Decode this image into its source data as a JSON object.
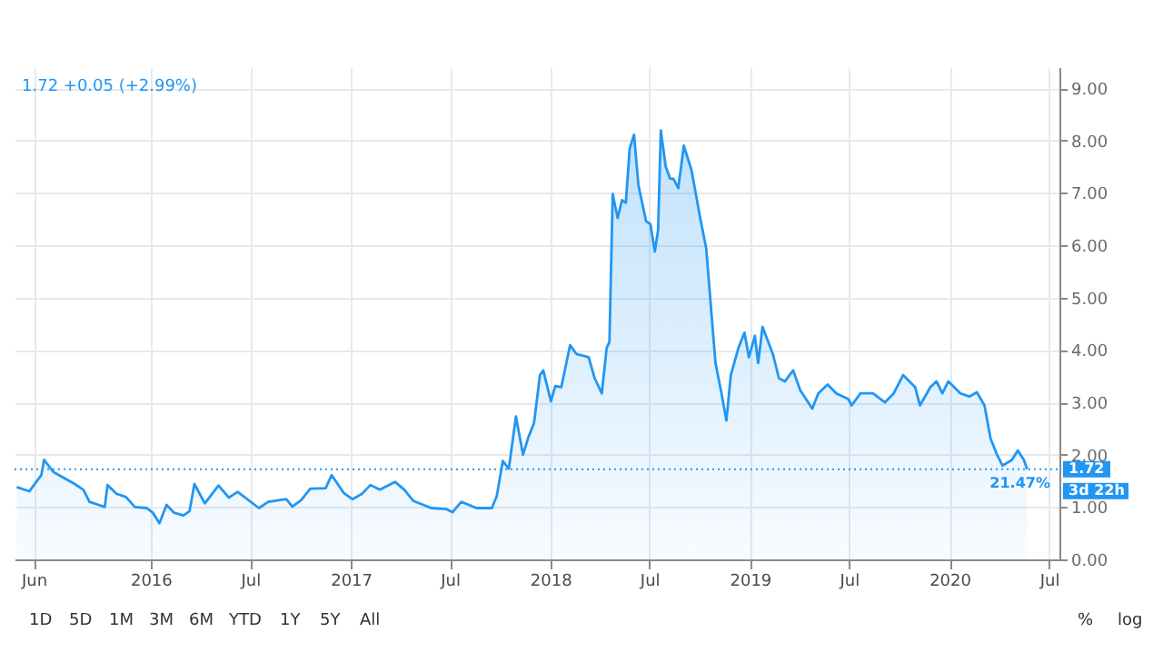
{
  "chart_data": {
    "type": "area",
    "annotations": [
      "1.72 +0.05 (+2.99%)",
      {
        "text": "21.47%",
        "y": 1.72
      },
      {
        "text": "1.72",
        "y": 1.72
      },
      "3d 22h",
      "1D",
      "5D",
      "1M",
      "3M",
      "6M",
      "YTD",
      "1Y",
      "5Y",
      "All",
      "%",
      "log"
    ],
    "x": [
      "2015-05-01",
      "2015-05-24",
      "2015-06-15",
      "2015-06-20",
      "2015-07-07",
      "2015-08-15",
      "2015-08-31",
      "2015-09-11",
      "2015-09-28",
      "2015-10-09",
      "2015-10-14",
      "2015-10-31",
      "2015-11-17",
      "2015-12-03",
      "2015-12-25",
      "2016-01-05",
      "2016-01-17",
      "2016-01-30",
      "2016-02-13",
      "2016-03-01",
      "2016-03-12",
      "2016-03-21",
      "2016-04-09",
      "2016-05-04",
      "2016-05-23",
      "2016-06-08",
      "2016-07-17",
      "2016-08-03",
      "2016-09-05",
      "2016-09-16",
      "2016-10-02",
      "2016-10-19",
      "2016-11-16",
      "2016-11-27",
      "2016-12-19",
      "2017-01-04",
      "2017-01-21",
      "2017-02-06",
      "2017-02-23",
      "2017-03-23",
      "2017-04-09",
      "2017-04-25",
      "2017-05-28",
      "2017-06-25",
      "2017-07-06",
      "2017-07-22",
      "2017-08-19",
      "2017-09-16",
      "2017-09-25",
      "2017-10-06",
      "2017-10-17",
      "2017-10-30",
      "2017-11-12",
      "2017-11-21",
      "2017-12-02",
      "2017-12-13",
      "2017-12-19",
      "2018-01-02",
      "2018-01-10",
      "2018-01-21",
      "2018-02-06",
      "2018-02-18",
      "2018-03-12",
      "2018-03-23",
      "2018-04-05",
      "2018-04-14",
      "2018-04-19",
      "2018-04-25",
      "2018-05-04",
      "2018-05-12",
      "2018-05-19",
      "2018-05-26",
      "2018-06-03",
      "2018-06-11",
      "2018-06-25",
      "2018-07-03",
      "2018-07-11",
      "2018-07-17",
      "2018-07-22",
      "2018-07-31",
      "2018-08-08",
      "2018-08-14",
      "2018-08-23",
      "2018-09-02",
      "2018-09-16",
      "2018-10-02",
      "2018-10-13",
      "2018-10-30",
      "2018-11-10",
      "2018-11-19",
      "2018-11-27",
      "2018-12-11",
      "2018-12-22",
      "2018-12-30",
      "2019-01-10",
      "2019-01-16",
      "2019-01-24",
      "2019-02-12",
      "2019-02-23",
      "2019-03-06",
      "2019-03-21",
      "2019-04-03",
      "2019-04-25",
      "2019-05-06",
      "2019-05-23",
      "2019-06-08",
      "2019-06-30",
      "2019-07-06",
      "2019-07-22",
      "2019-08-14",
      "2019-09-05",
      "2019-09-21",
      "2019-10-08",
      "2019-10-30",
      "2019-11-08",
      "2019-11-27",
      "2019-12-08",
      "2019-12-19",
      "2019-12-30",
      "2020-01-21",
      "2020-02-06",
      "2020-02-20",
      "2020-03-05",
      "2020-03-16",
      "2020-03-27",
      "2020-04-07",
      "2020-04-24",
      "2020-05-05",
      "2020-05-16",
      "2020-05-22"
    ],
    "series": [
      {
        "color": "#2196f3",
        "values": [
          1.38,
          1.3,
          1.61,
          1.9,
          1.67,
          1.44,
          1.33,
          1.1,
          1.04,
          1.0,
          1.42,
          1.25,
          1.19,
          1.0,
          0.98,
          0.89,
          0.69,
          1.04,
          0.89,
          0.84,
          0.92,
          1.44,
          1.07,
          1.41,
          1.18,
          1.29,
          0.98,
          1.1,
          1.15,
          1.01,
          1.13,
          1.35,
          1.36,
          1.61,
          1.27,
          1.15,
          1.25,
          1.42,
          1.33,
          1.48,
          1.33,
          1.12,
          0.98,
          0.96,
          0.9,
          1.1,
          0.98,
          0.98,
          1.21,
          1.88,
          1.73,
          2.73,
          2.0,
          2.31,
          2.6,
          3.52,
          3.61,
          3.02,
          3.31,
          3.29,
          4.09,
          3.92,
          3.86,
          3.46,
          3.17,
          4.04,
          4.15,
          6.98,
          6.52,
          6.86,
          6.81,
          7.84,
          8.11,
          7.15,
          6.46,
          6.4,
          5.88,
          6.29,
          8.19,
          7.5,
          7.27,
          7.27,
          7.09,
          7.9,
          7.44,
          6.52,
          5.94,
          3.75,
          3.17,
          2.65,
          3.52,
          4.04,
          4.33,
          3.86,
          4.27,
          3.75,
          4.44,
          3.92,
          3.46,
          3.4,
          3.61,
          3.23,
          2.88,
          3.17,
          3.34,
          3.17,
          3.06,
          2.94,
          3.17,
          3.17,
          3.0,
          3.17,
          3.52,
          3.29,
          2.94,
          3.29,
          3.4,
          3.17,
          3.4,
          3.17,
          3.11,
          3.19,
          2.94,
          2.31,
          2.02,
          1.79,
          1.9,
          2.08,
          1.9,
          1.72
        ]
      }
    ],
    "xlim": [
      "2015-04-27",
      "2020-07-20"
    ],
    "xticks": [
      {
        "value": "2015-06-01",
        "label": "Jun"
      },
      {
        "value": "2016-01-01",
        "label": "2016"
      },
      {
        "value": "2016-07-01",
        "label": "Jul"
      },
      {
        "value": "2017-01-01",
        "label": "2017"
      },
      {
        "value": "2017-07-01",
        "label": "Jul"
      },
      {
        "value": "2018-01-01",
        "label": "2018"
      },
      {
        "value": "2018-07-01",
        "label": "Jul"
      },
      {
        "value": "2019-01-01",
        "label": "2019"
      },
      {
        "value": "2019-07-01",
        "label": "Jul"
      },
      {
        "value": "2020-01-01",
        "label": "2020"
      },
      {
        "value": "2020-07-01",
        "label": "Jul"
      }
    ],
    "ylim": [
      0,
      9.4
    ],
    "yticks": [
      {
        "value": 0,
        "label": "0.00"
      },
      {
        "value": 1,
        "label": "1.00"
      },
      {
        "value": 2,
        "label": "2.00"
      },
      {
        "value": 3,
        "label": "3.00"
      },
      {
        "value": 4,
        "label": "4.00"
      },
      {
        "value": 5,
        "label": "5.00"
      },
      {
        "value": 6,
        "label": "6.00"
      },
      {
        "value": 7,
        "label": "7.00"
      },
      {
        "value": 8,
        "label": "8.00"
      },
      {
        "value": 9,
        "label": "9.00"
      }
    ],
    "ref_lines": [
      {
        "axis": "y",
        "value": 1.72,
        "line_style": "dotted",
        "color": "#2196f3"
      }
    ],
    "grid": true,
    "line_style": "solid"
  }
}
